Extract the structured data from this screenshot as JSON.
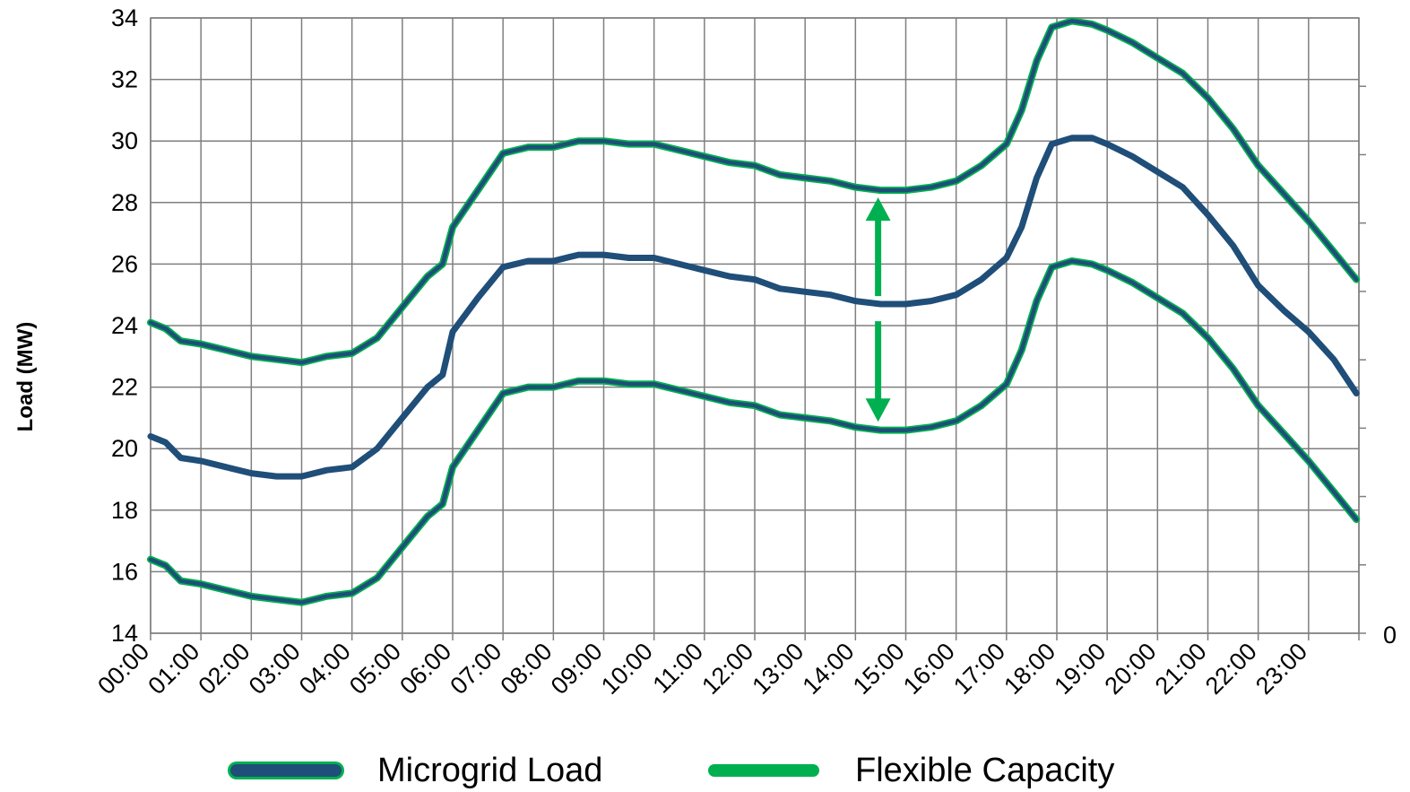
{
  "chart_data": {
    "type": "line",
    "title": "",
    "xlabel": "",
    "ylabel": "Load (MW)",
    "ylim": [
      14,
      34
    ],
    "yticks": [
      "14",
      "16",
      "18",
      "20",
      "22",
      "24",
      "26",
      "28",
      "30",
      "32",
      "34"
    ],
    "y2_tick_label": "0",
    "grid": true,
    "legend_position": "bottom",
    "x": [
      "00:00",
      "01:00",
      "02:00",
      "03:00",
      "04:00",
      "05:00",
      "06:00",
      "07:00",
      "08:00",
      "09:00",
      "10:00",
      "11:00",
      "12:00",
      "13:00",
      "14:00",
      "15:00",
      "16:00",
      "17:00",
      "18:00",
      "19:00",
      "20:00",
      "21:00",
      "22:00",
      "23:00"
    ],
    "series": [
      {
        "name": "Microgrid Load",
        "color": "#1f4e79",
        "points": [
          [
            0,
            20.4
          ],
          [
            0.3,
            20.2
          ],
          [
            0.6,
            19.7
          ],
          [
            1.0,
            19.6
          ],
          [
            1.5,
            19.4
          ],
          [
            2.0,
            19.2
          ],
          [
            2.5,
            19.1
          ],
          [
            3.0,
            19.1
          ],
          [
            3.5,
            19.3
          ],
          [
            4.0,
            19.4
          ],
          [
            4.5,
            20.0
          ],
          [
            5.0,
            21.0
          ],
          [
            5.5,
            22.0
          ],
          [
            5.8,
            22.4
          ],
          [
            6.0,
            23.8
          ],
          [
            6.5,
            24.9
          ],
          [
            7.0,
            25.9
          ],
          [
            7.5,
            26.1
          ],
          [
            8.0,
            26.1
          ],
          [
            8.5,
            26.3
          ],
          [
            9.0,
            26.3
          ],
          [
            9.5,
            26.2
          ],
          [
            10.0,
            26.2
          ],
          [
            10.5,
            26.0
          ],
          [
            11.0,
            25.8
          ],
          [
            11.5,
            25.6
          ],
          [
            12.0,
            25.5
          ],
          [
            12.5,
            25.2
          ],
          [
            13.0,
            25.1
          ],
          [
            13.5,
            25.0
          ],
          [
            14.0,
            24.8
          ],
          [
            14.5,
            24.7
          ],
          [
            15.0,
            24.7
          ],
          [
            15.5,
            24.8
          ],
          [
            16.0,
            25.0
          ],
          [
            16.5,
            25.5
          ],
          [
            17.0,
            26.2
          ],
          [
            17.3,
            27.2
          ],
          [
            17.6,
            28.8
          ],
          [
            17.9,
            29.9
          ],
          [
            18.3,
            30.1
          ],
          [
            18.7,
            30.1
          ],
          [
            19.0,
            29.9
          ],
          [
            19.5,
            29.5
          ],
          [
            20.0,
            29.0
          ],
          [
            20.5,
            28.5
          ],
          [
            21.0,
            27.6
          ],
          [
            21.5,
            26.6
          ],
          [
            22.0,
            25.3
          ],
          [
            22.5,
            24.5
          ],
          [
            23.0,
            23.8
          ],
          [
            23.5,
            22.9
          ],
          [
            23.95,
            21.8
          ]
        ]
      },
      {
        "name": "Flexible Capacity",
        "color": "#00b050",
        "upper_band": [
          [
            0,
            24.1
          ],
          [
            0.3,
            23.9
          ],
          [
            0.6,
            23.5
          ],
          [
            1.0,
            23.4
          ],
          [
            1.5,
            23.2
          ],
          [
            2.0,
            23.0
          ],
          [
            2.5,
            22.9
          ],
          [
            3.0,
            22.8
          ],
          [
            3.5,
            23.0
          ],
          [
            4.0,
            23.1
          ],
          [
            4.5,
            23.6
          ],
          [
            5.0,
            24.6
          ],
          [
            5.5,
            25.6
          ],
          [
            5.8,
            26.0
          ],
          [
            6.0,
            27.2
          ],
          [
            6.5,
            28.4
          ],
          [
            7.0,
            29.6
          ],
          [
            7.5,
            29.8
          ],
          [
            8.0,
            29.8
          ],
          [
            8.5,
            30.0
          ],
          [
            9.0,
            30.0
          ],
          [
            9.5,
            29.9
          ],
          [
            10.0,
            29.9
          ],
          [
            10.5,
            29.7
          ],
          [
            11.0,
            29.5
          ],
          [
            11.5,
            29.3
          ],
          [
            12.0,
            29.2
          ],
          [
            12.5,
            28.9
          ],
          [
            13.0,
            28.8
          ],
          [
            13.5,
            28.7
          ],
          [
            14.0,
            28.5
          ],
          [
            14.5,
            28.4
          ],
          [
            15.0,
            28.4
          ],
          [
            15.5,
            28.5
          ],
          [
            16.0,
            28.7
          ],
          [
            16.5,
            29.2
          ],
          [
            17.0,
            29.9
          ],
          [
            17.3,
            31.0
          ],
          [
            17.6,
            32.6
          ],
          [
            17.9,
            33.7
          ],
          [
            18.3,
            33.9
          ],
          [
            18.7,
            33.8
          ],
          [
            19.0,
            33.6
          ],
          [
            19.5,
            33.2
          ],
          [
            20.0,
            32.7
          ],
          [
            20.5,
            32.2
          ],
          [
            21.0,
            31.4
          ],
          [
            21.5,
            30.4
          ],
          [
            22.0,
            29.2
          ],
          [
            22.5,
            28.3
          ],
          [
            23.0,
            27.4
          ],
          [
            23.5,
            26.4
          ],
          [
            23.95,
            25.5
          ]
        ],
        "lower_band": [
          [
            0,
            16.4
          ],
          [
            0.3,
            16.2
          ],
          [
            0.6,
            15.7
          ],
          [
            1.0,
            15.6
          ],
          [
            1.5,
            15.4
          ],
          [
            2.0,
            15.2
          ],
          [
            2.5,
            15.1
          ],
          [
            3.0,
            15.0
          ],
          [
            3.5,
            15.2
          ],
          [
            4.0,
            15.3
          ],
          [
            4.5,
            15.8
          ],
          [
            5.0,
            16.8
          ],
          [
            5.5,
            17.8
          ],
          [
            5.8,
            18.2
          ],
          [
            6.0,
            19.4
          ],
          [
            6.5,
            20.6
          ],
          [
            7.0,
            21.8
          ],
          [
            7.5,
            22.0
          ],
          [
            8.0,
            22.0
          ],
          [
            8.5,
            22.2
          ],
          [
            9.0,
            22.2
          ],
          [
            9.5,
            22.1
          ],
          [
            10.0,
            22.1
          ],
          [
            10.5,
            21.9
          ],
          [
            11.0,
            21.7
          ],
          [
            11.5,
            21.5
          ],
          [
            12.0,
            21.4
          ],
          [
            12.5,
            21.1
          ],
          [
            13.0,
            21.0
          ],
          [
            13.5,
            20.9
          ],
          [
            14.0,
            20.7
          ],
          [
            14.5,
            20.6
          ],
          [
            15.0,
            20.6
          ],
          [
            15.5,
            20.7
          ],
          [
            16.0,
            20.9
          ],
          [
            16.5,
            21.4
          ],
          [
            17.0,
            22.1
          ],
          [
            17.3,
            23.2
          ],
          [
            17.6,
            24.8
          ],
          [
            17.9,
            25.9
          ],
          [
            18.3,
            26.1
          ],
          [
            18.7,
            26.0
          ],
          [
            19.0,
            25.8
          ],
          [
            19.5,
            25.4
          ],
          [
            20.0,
            24.9
          ],
          [
            20.5,
            24.4
          ],
          [
            21.0,
            23.6
          ],
          [
            21.5,
            22.6
          ],
          [
            22.0,
            21.4
          ],
          [
            22.5,
            20.5
          ],
          [
            23.0,
            19.6
          ],
          [
            23.5,
            18.6
          ],
          [
            23.95,
            17.7
          ]
        ]
      }
    ],
    "annotation": {
      "type": "double-arrow",
      "color": "#00b050",
      "x": 14.45,
      "y_top": 28.4,
      "y_bottom": 20.7
    }
  },
  "legend": {
    "items": [
      {
        "label": "Microgrid Load",
        "color": "#1f4e79"
      },
      {
        "label": "Flexible Capacity",
        "color": "#00b050"
      }
    ]
  }
}
